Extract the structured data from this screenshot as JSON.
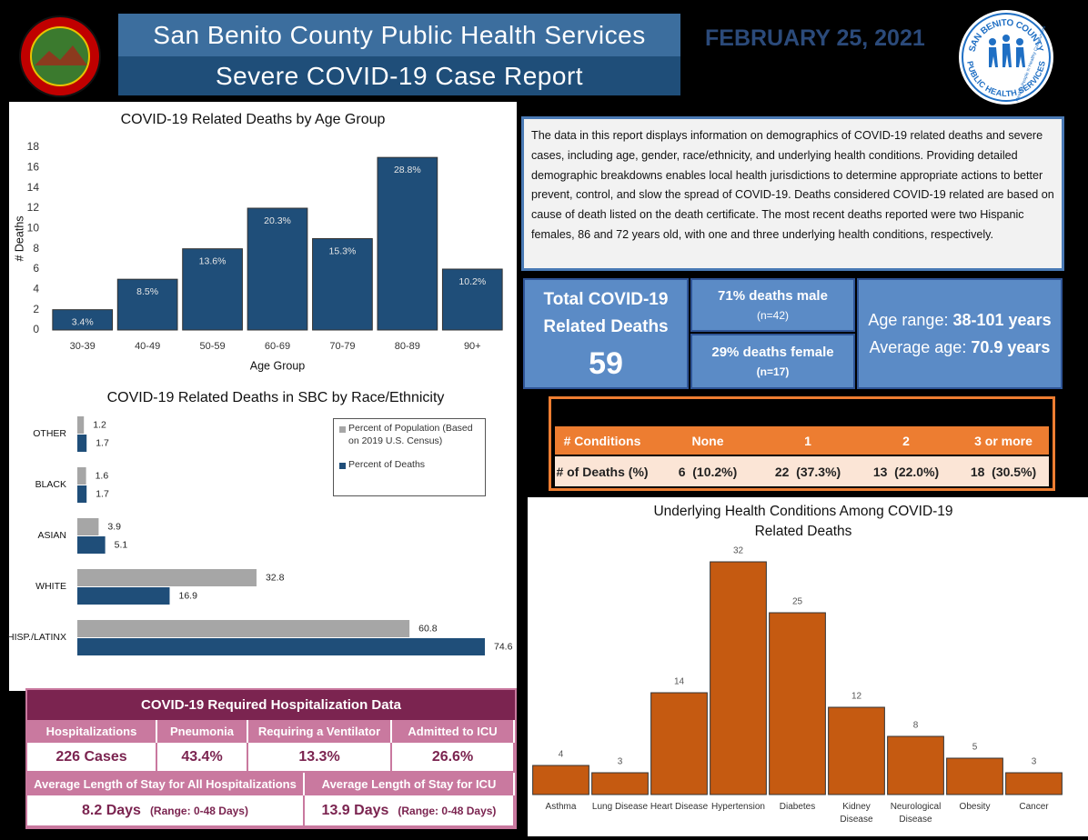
{
  "header": {
    "title": "San Benito County Public Health Services",
    "subtitle": "Severe COVID-19 Case Report",
    "date": "FEBRUARY 25, 2021",
    "logo_text": [
      "SAN BENITO COUNTY",
      "PUBLIC HEALTH SERVICES",
      "Healthy People in Healthy Communities"
    ]
  },
  "intro": "The data in this report displays information on demographics of COVID-19 related deaths and severe cases, including age, gender, race/ethnicity, and underlying health conditions.  Providing detailed demographic breakdowns enables local health jurisdictions to determine appropriate actions to better prevent, control, and slow the spread of COVID-19.  Deaths considered COVID-19 related are based on cause of death listed on the death certificate.  The most recent deaths reported were two Hispanic females, 86 and 72 years old, with one and three underlying health conditions, respectively.",
  "summary": {
    "total_label": "Total COVID-19 Related Deaths",
    "total": 59,
    "male": "71% deaths male",
    "male_n": "(n=42)",
    "female": "29% deaths female",
    "female_n": "(n=17)",
    "age_range_label": "Age range:",
    "age_range": "38-101 years",
    "average_label": "Average age:",
    "average": "70.9 years"
  },
  "conditions_table": {
    "header": [
      "# Conditions",
      "None",
      "1",
      "2",
      "3 or more"
    ],
    "row": [
      "# of Deaths (%)",
      "6  (10.2%)",
      "22  (37.3%)",
      "13  (22.0%)",
      "18  (30.5%)"
    ]
  },
  "hospitalization": {
    "title": "COVID-19 Required Hospitalization Data",
    "headers": [
      "Hospitalizations",
      "Pneumonia",
      "Requiring a Ventilator",
      "Admitted to ICU"
    ],
    "values": [
      "226 Cases",
      "43.4%",
      "13.3%",
      "26.6%"
    ],
    "stay_headers": [
      "Average Length of Stay for All Hospitalizations",
      "Average Length of Stay for ICU"
    ],
    "stay_values": [
      {
        "days": "8.2 Days",
        "range": "(Range: 0-48 Days)"
      },
      {
        "days": "13.9 Days",
        "range": "(Range: 0-48 Days)"
      }
    ]
  },
  "chart_data": [
    {
      "type": "bar",
      "title": "COVID-19 Related Deaths by Age Group",
      "x_label": "Age Group",
      "y_label": "# Deaths",
      "categories": [
        "30-39",
        "40-49",
        "50-59",
        "60-69",
        "70-79",
        "80-89",
        "90+"
      ],
      "values": [
        2,
        5,
        8,
        12,
        9,
        17,
        6
      ],
      "annotations": [
        "3.4%",
        "8.5%",
        "13.6%",
        "20.3%",
        "15.3%",
        "28.8%",
        "10.2%"
      ],
      "color": "#1f4e79",
      "ylim": [
        0,
        18
      ],
      "yticks": [
        0,
        2,
        4,
        6,
        8,
        10,
        12,
        14,
        16,
        18
      ],
      "grid": false
    },
    {
      "type": "bar",
      "orientation": "horizontal",
      "title": "COVID-19 Related Deaths in SBC by Race/Ethnicity",
      "categories": [
        "OTHER",
        "BLACK",
        "ASIAN",
        "WHITE",
        "HISP./LATINX"
      ],
      "series": [
        {
          "name": "Percent of Population (Based on 2019 U.S. Census)",
          "color": "#a6a6a6",
          "values": [
            1.2,
            1.6,
            3.9,
            32.8,
            60.8
          ]
        },
        {
          "name": "Percent of Deaths",
          "color": "#1f4e79",
          "values": [
            1.7,
            1.7,
            5.1,
            16.9,
            74.6
          ]
        }
      ],
      "legend": "upper right"
    },
    {
      "type": "bar",
      "title": "Underlying Health Conditions Among COVID-19 Related Deaths",
      "categories": [
        "Asthma",
        "Lung Disease",
        "Heart Disease",
        "Hypertension",
        "Diabetes",
        "Kidney Disease",
        "Neurological Disease",
        "Obesity",
        "Cancer"
      ],
      "values": [
        4,
        3,
        14,
        32,
        25,
        12,
        8,
        5,
        3
      ],
      "color": "#c55a11",
      "data_labels": true
    }
  ]
}
